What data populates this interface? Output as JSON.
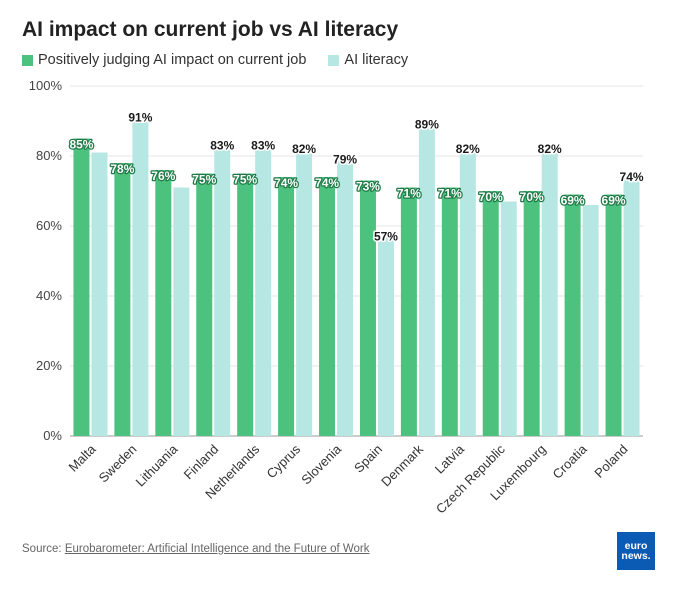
{
  "chart_data": {
    "type": "bar",
    "title": "AI impact on current job vs AI literacy",
    "categories": [
      "Malta",
      "Sweden",
      "Lithuania",
      "Finland",
      "Netherlands",
      "Cyprus",
      "Slovenia",
      "Spain",
      "Denmark",
      "Latvia",
      "Czech Republic",
      "Luxembourg",
      "Croatia",
      "Poland"
    ],
    "series": [
      {
        "name": "Positively judging AI impact on current job",
        "color": "#4cc27e",
        "values": [
          85,
          78,
          76,
          75,
          75,
          74,
          74,
          73,
          71,
          71,
          70,
          70,
          69,
          69
        ],
        "labels": [
          "85%",
          "78%",
          "76%",
          "75%",
          "75%",
          "74%",
          "74%",
          "73%",
          "71%",
          "71%",
          "70%",
          "70%",
          "69%",
          "69%"
        ]
      },
      {
        "name": "AI literacy",
        "color": "#b7e7e3",
        "values": [
          81,
          91,
          71,
          83,
          83,
          82,
          79,
          57,
          89,
          82,
          67,
          82,
          66,
          74
        ],
        "labels": [
          "",
          "91%",
          "",
          "83%",
          "83%",
          "82%",
          "79%",
          "57%",
          "89%",
          "82%",
          "",
          "82%",
          "",
          "74%"
        ]
      }
    ],
    "yticks": [
      "0%",
      "20%",
      "40%",
      "60%",
      "80%",
      "100%"
    ],
    "ylim": [
      0,
      100
    ],
    "grid": true,
    "legend_position": "top-left"
  },
  "source": {
    "prefix": "Source: ",
    "link": "Eurobarometer: Artificial Intelligence and the Future of Work"
  },
  "logo": {
    "line1": "euro",
    "line2": "news.",
    "color": "#0b5bb5"
  }
}
